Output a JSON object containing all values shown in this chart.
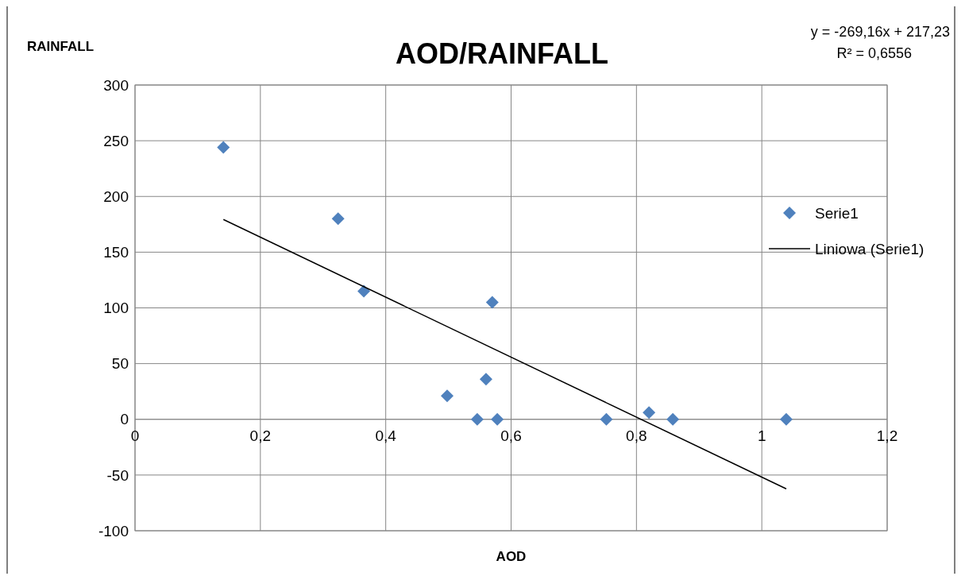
{
  "chart_data": {
    "type": "scatter",
    "title": "AOD/RAINFALL",
    "xlabel": "AOD",
    "ylabel": "RAINFALL",
    "annotations": [
      "y = -269,16x + 217,23",
      "R² = 0,6556"
    ],
    "xlim": [
      0,
      1.2
    ],
    "xticks": [
      0,
      {
        "value": 0.2,
        "label": "0,2"
      },
      {
        "value": 0.4,
        "label": "0,4"
      },
      {
        "value": 0.6,
        "label": "0,6"
      },
      {
        "value": 0.8,
        "label": "0,8"
      },
      1,
      {
        "value": 1.2,
        "label": "1,2"
      }
    ],
    "ylim": [
      -100,
      300
    ],
    "yticks": [
      -100,
      -50,
      0,
      50,
      100,
      150,
      200,
      250,
      300
    ],
    "grid": true,
    "legend": "right",
    "series": [
      {
        "name": "Serie1",
        "marker": "diamond",
        "color": "#4f81bd",
        "x": [
          0.141,
          0.324,
          0.365,
          0.57,
          0.498,
          0.56,
          0.546,
          0.578,
          0.752,
          0.82,
          0.858,
          1.039
        ],
        "values": [
          244,
          180,
          115,
          105,
          21,
          36,
          0,
          0,
          0,
          6,
          0,
          0
        ]
      },
      {
        "name": "Liniowa (Serie1)",
        "type": "line",
        "marker": "none",
        "line_style": "solid",
        "color": "#000000",
        "x": [
          0.141,
          1.039
        ],
        "values": [
          179.3,
          -62.4
        ]
      }
    ]
  }
}
